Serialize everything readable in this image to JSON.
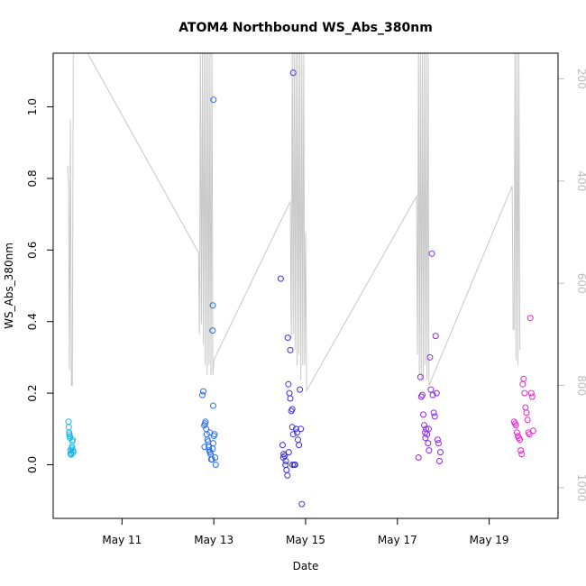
{
  "chart_data": {
    "type": "scatter",
    "title": "ATOM4 Northbound WS_Abs_380nm",
    "xlabel": "Date",
    "ylabel": "WS_Abs_380nm",
    "xlim": [
      "2017-05-09 12:00",
      "2017-05-20 12:00"
    ],
    "ylim": [
      -0.15,
      1.15
    ],
    "x_ticks": [
      {
        "date": "2017-05-11",
        "label": "May 11"
      },
      {
        "date": "2017-05-13",
        "label": "May 13"
      },
      {
        "date": "2017-05-15",
        "label": "May 15"
      },
      {
        "date": "2017-05-17",
        "label": "May 17"
      },
      {
        "date": "2017-05-19",
        "label": "May 19"
      }
    ],
    "y_ticks": [
      0.0,
      0.2,
      0.4,
      0.6,
      0.8,
      1.0
    ],
    "y_tick_labels": [
      "0.0",
      "0.2",
      "0.4",
      "0.6",
      "0.8",
      "1.0"
    ],
    "right_axis": {
      "ticks": [
        200,
        400,
        600,
        800,
        1000
      ],
      "ylim": [
        1060,
        150
      ],
      "color": "#bdbdbd",
      "note": "inverted secondary axis for grey line"
    },
    "grid": false,
    "legend": "none",
    "series": [
      {
        "color": "#1eb4e6",
        "points": [
          [
            "2017-05-09 20:00",
            0.12
          ],
          [
            "2017-05-09 20:10",
            0.105
          ],
          [
            "2017-05-09 20:20",
            0.09
          ],
          [
            "2017-05-09 20:30",
            0.085
          ],
          [
            "2017-05-09 20:40",
            0.08
          ],
          [
            "2017-05-09 20:50",
            0.075
          ],
          [
            "2017-05-09 21:00",
            0.04
          ],
          [
            "2017-05-09 21:10",
            0.03
          ],
          [
            "2017-05-09 21:20",
            0.028
          ],
          [
            "2017-05-09 21:30",
            0.033
          ],
          [
            "2017-05-09 21:40",
            0.045
          ],
          [
            "2017-05-09 21:50",
            0.05
          ],
          [
            "2017-05-09 22:00",
            0.065
          ],
          [
            "2017-05-09 22:10",
            0.07
          ],
          [
            "2017-05-09 22:20",
            0.04
          ],
          [
            "2017-05-09 22:30",
            0.035
          ]
        ]
      },
      {
        "color": "#2a6ef0",
        "points": [
          [
            "2017-05-12 18:00",
            0.195
          ],
          [
            "2017-05-12 18:30",
            0.205
          ],
          [
            "2017-05-12 19:00",
            0.11
          ],
          [
            "2017-05-12 19:20",
            0.115
          ],
          [
            "2017-05-12 19:40",
            0.12
          ],
          [
            "2017-05-12 20:00",
            0.1
          ],
          [
            "2017-05-12 20:20",
            0.085
          ],
          [
            "2017-05-12 20:40",
            0.07
          ],
          [
            "2017-05-12 21:00",
            0.065
          ],
          [
            "2017-05-12 21:20",
            0.05
          ],
          [
            "2017-05-12 21:40",
            0.04
          ],
          [
            "2017-05-12 22:00",
            0.035
          ],
          [
            "2017-05-12 22:20",
            0.03
          ],
          [
            "2017-05-12 22:40",
            0.015
          ],
          [
            "2017-05-12 23:00",
            0.015
          ],
          [
            "2017-05-12 23:20",
            0.045
          ],
          [
            "2017-05-12 23:40",
            0.06
          ],
          [
            "2017-05-13 00:00",
            0.08
          ],
          [
            "2017-05-13 00:20",
            0.085
          ],
          [
            "2017-05-13 00:40",
            0.02
          ],
          [
            "2017-05-13 01:00",
            0.0
          ],
          [
            "2017-05-12 23:30",
            0.445
          ],
          [
            "2017-05-12 23:20",
            0.375
          ],
          [
            "2017-05-12 23:50",
            1.02
          ],
          [
            "2017-05-12 23:40",
            0.165
          ],
          [
            "2017-05-12 19:10",
            0.05
          ],
          [
            "2017-05-12 21:50",
            0.09
          ]
        ]
      },
      {
        "color": "#3c32e6",
        "points": [
          [
            "2017-05-14 11:00",
            0.52
          ],
          [
            "2017-05-14 12:00",
            0.055
          ],
          [
            "2017-05-14 12:30",
            0.03
          ],
          [
            "2017-05-14 13:00",
            0.025
          ],
          [
            "2017-05-14 13:30",
            0.0
          ],
          [
            "2017-05-14 14:00",
            -0.015
          ],
          [
            "2017-05-14 14:30",
            -0.03
          ],
          [
            "2017-05-14 15:00",
            0.225
          ],
          [
            "2017-05-14 15:30",
            0.2
          ],
          [
            "2017-05-14 16:00",
            0.185
          ],
          [
            "2017-05-14 16:30",
            0.15
          ],
          [
            "2017-05-14 17:00",
            0.155
          ],
          [
            "2017-05-14 14:40",
            0.355
          ],
          [
            "2017-05-14 16:00",
            0.32
          ],
          [
            "2017-05-14 17:30",
            1.095
          ],
          [
            "2017-05-14 17:00",
            0.105
          ],
          [
            "2017-05-14 17:30",
            0.085
          ],
          [
            "2017-05-14 18:00",
            0.0
          ],
          [
            "2017-05-14 18:30",
            0.0
          ],
          [
            "2017-05-14 19:00",
            0.1
          ],
          [
            "2017-05-14 19:30",
            0.09
          ],
          [
            "2017-05-14 20:00",
            0.07
          ],
          [
            "2017-05-14 20:30",
            0.055
          ],
          [
            "2017-05-14 21:00",
            0.21
          ],
          [
            "2017-05-14 21:30",
            0.1
          ],
          [
            "2017-05-14 22:00",
            -0.11
          ],
          [
            "2017-05-14 12:20",
            0.02
          ],
          [
            "2017-05-14 13:40",
            0.01
          ],
          [
            "2017-05-14 15:10",
            0.035
          ],
          [
            "2017-05-14 17:10",
            0.0
          ]
        ]
      },
      {
        "color": "#8c28e6",
        "points": [
          [
            "2017-05-17 11:00",
            0.02
          ],
          [
            "2017-05-17 12:00",
            0.245
          ],
          [
            "2017-05-17 12:30",
            0.19
          ],
          [
            "2017-05-17 13:00",
            0.195
          ],
          [
            "2017-05-17 13:30",
            0.14
          ],
          [
            "2017-05-17 14:00",
            0.11
          ],
          [
            "2017-05-17 14:30",
            0.09
          ],
          [
            "2017-05-17 15:00",
            0.1
          ],
          [
            "2017-05-17 15:30",
            0.085
          ],
          [
            "2017-05-17 16:00",
            0.06
          ],
          [
            "2017-05-17 16:30",
            0.04
          ],
          [
            "2017-05-17 17:00",
            0.3
          ],
          [
            "2017-05-17 17:30",
            0.21
          ],
          [
            "2017-05-17 18:00",
            0.59
          ],
          [
            "2017-05-17 18:30",
            0.195
          ],
          [
            "2017-05-17 19:00",
            0.145
          ],
          [
            "2017-05-17 19:30",
            0.135
          ],
          [
            "2017-05-17 20:00",
            0.36
          ],
          [
            "2017-05-17 20:30",
            0.2
          ],
          [
            "2017-05-17 21:00",
            0.07
          ],
          [
            "2017-05-17 21:30",
            0.06
          ],
          [
            "2017-05-17 22:00",
            0.01
          ],
          [
            "2017-05-17 22:30",
            0.035
          ],
          [
            "2017-05-17 14:40",
            0.075
          ],
          [
            "2017-05-17 16:20",
            0.1
          ]
        ]
      },
      {
        "color": "#e628c8",
        "points": [
          [
            "2017-05-19 13:00",
            0.12
          ],
          [
            "2017-05-19 13:30",
            0.115
          ],
          [
            "2017-05-19 14:00",
            0.11
          ],
          [
            "2017-05-19 14:30",
            0.09
          ],
          [
            "2017-05-19 15:00",
            0.08
          ],
          [
            "2017-05-19 15:30",
            0.075
          ],
          [
            "2017-05-19 16:00",
            0.07
          ],
          [
            "2017-05-19 16:30",
            0.04
          ],
          [
            "2017-05-19 17:00",
            0.03
          ],
          [
            "2017-05-19 17:30",
            0.225
          ],
          [
            "2017-05-19 18:00",
            0.24
          ],
          [
            "2017-05-19 18:30",
            0.2
          ],
          [
            "2017-05-19 19:00",
            0.16
          ],
          [
            "2017-05-19 19:30",
            0.145
          ],
          [
            "2017-05-19 20:00",
            0.125
          ],
          [
            "2017-05-19 20:30",
            0.09
          ],
          [
            "2017-05-19 21:00",
            0.085
          ],
          [
            "2017-05-19 21:30",
            0.41
          ],
          [
            "2017-05-19 22:00",
            0.2
          ],
          [
            "2017-05-19 22:30",
            0.19
          ],
          [
            "2017-05-19 23:00",
            0.095
          ]
        ]
      }
    ],
    "grey_line": {
      "color": "#c8c8c8",
      "axis": "right",
      "points": [
        [
          "2017-05-09 19:30",
          370
        ],
        [
          "2017-05-09 20:00",
          400
        ],
        [
          "2017-05-09 20:30",
          770
        ],
        [
          "2017-05-09 21:00",
          280
        ],
        [
          "2017-05-09 21:30",
          800
        ],
        [
          "2017-05-09 22:00",
          800
        ],
        [
          "2017-05-09 22:30",
          150
        ],
        [
          "2017-05-10 06:00",
          150
        ],
        [
          "2017-05-12 16:00",
          540
        ],
        [
          "2017-05-12 16:30",
          700
        ],
        [
          "2017-05-12 17:00",
          150
        ],
        [
          "2017-05-12 17:30",
          680
        ],
        [
          "2017-05-12 18:00",
          150
        ],
        [
          "2017-05-12 18:30",
          720
        ],
        [
          "2017-05-12 19:00",
          150
        ],
        [
          "2017-05-12 19:30",
          760
        ],
        [
          "2017-05-12 20:00",
          150
        ],
        [
          "2017-05-12 20:30",
          780
        ],
        [
          "2017-05-12 21:00",
          150
        ],
        [
          "2017-05-12 21:30",
          760
        ],
        [
          "2017-05-12 22:00",
          150
        ],
        [
          "2017-05-12 22:30",
          780
        ],
        [
          "2017-05-12 23:00",
          150
        ],
        [
          "2017-05-12 23:30",
          780
        ],
        [
          "2017-05-13 00:00",
          750
        ],
        [
          "2017-05-14 16:00",
          440
        ],
        [
          "2017-05-14 16:30",
          710
        ],
        [
          "2017-05-14 17:00",
          150
        ],
        [
          "2017-05-14 17:30",
          700
        ],
        [
          "2017-05-14 18:00",
          150
        ],
        [
          "2017-05-14 18:30",
          730
        ],
        [
          "2017-05-14 19:00",
          150
        ],
        [
          "2017-05-14 19:30",
          760
        ],
        [
          "2017-05-14 20:00",
          150
        ],
        [
          "2017-05-14 20:30",
          740
        ],
        [
          "2017-05-14 21:00",
          150
        ],
        [
          "2017-05-14 21:30",
          790
        ],
        [
          "2017-05-14 22:00",
          150
        ],
        [
          "2017-05-14 22:30",
          760
        ],
        [
          "2017-05-14 23:00",
          150
        ],
        [
          "2017-05-14 23:30",
          760
        ],
        [
          "2017-05-15 00:00",
          500
        ],
        [
          "2017-05-15 00:30",
          810
        ],
        [
          "2017-05-17 10:00",
          430
        ],
        [
          "2017-05-17 10:30",
          740
        ],
        [
          "2017-05-17 11:00",
          150
        ],
        [
          "2017-05-17 11:30",
          780
        ],
        [
          "2017-05-17 12:00",
          150
        ],
        [
          "2017-05-17 12:30",
          790
        ],
        [
          "2017-05-17 13:00",
          150
        ],
        [
          "2017-05-17 13:30",
          790
        ],
        [
          "2017-05-17 14:00",
          150
        ],
        [
          "2017-05-17 14:30",
          760
        ],
        [
          "2017-05-17 15:00",
          150
        ],
        [
          "2017-05-17 15:30",
          790
        ],
        [
          "2017-05-17 16:00",
          150
        ],
        [
          "2017-05-17 16:30",
          800
        ],
        [
          "2017-05-19 12:00",
          410
        ],
        [
          "2017-05-19 12:30",
          690
        ],
        [
          "2017-05-19 13:00",
          690
        ],
        [
          "2017-05-19 13:30",
          150
        ],
        [
          "2017-05-19 14:00",
          750
        ],
        [
          "2017-05-19 14:30",
          150
        ],
        [
          "2017-05-19 15:00",
          760
        ],
        [
          "2017-05-19 15:30",
          150
        ],
        [
          "2017-05-19 16:00",
          730
        ]
      ]
    }
  }
}
